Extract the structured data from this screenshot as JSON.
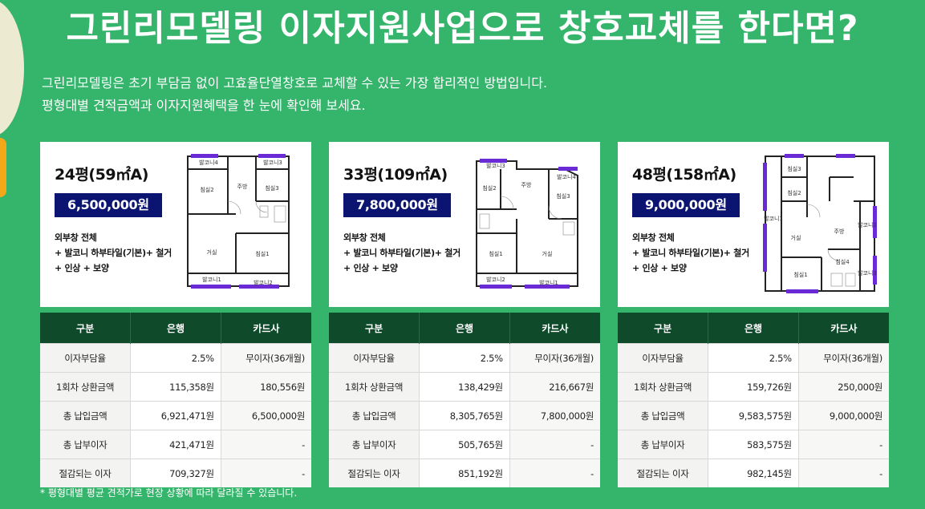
{
  "headline": "그린리모델링 이자지원사업으로 창호교체를 한다면?",
  "intro": {
    "line1": "그린리모델링은 초기 부담금 없이 고효율단열창호로 교체할 수 있는 가장 합리적인 방법입니다.",
    "line2": "평형대별 견적금액과 이자지원혜택을 한 눈에 확인해 보세요."
  },
  "table_headers": [
    "구분",
    "은행",
    "카드사"
  ],
  "row_labels": [
    "이자부담율",
    "1회차 상환금액",
    "총 납입금액",
    "총 납부이자",
    "절감되는 이자"
  ],
  "includes": [
    "외부창 전체",
    "+ 발코니 하부타일(기본)+ 철거",
    "+ 인상 + 보양"
  ],
  "plans": [
    {
      "size": "24평(59㎡A)",
      "price": "6,500,000원",
      "rooms": {
        "b1": "발코니4",
        "b2": "발코니3",
        "r1": "침실2",
        "r2": "주방",
        "r3": "침실3",
        "r4": "거실",
        "r5": "침실1",
        "b3": "발코니1",
        "b4": "발코니2"
      },
      "bank": [
        "2.5%",
        "115,358원",
        "6,921,471원",
        "421,471원",
        "709,327원"
      ],
      "card": [
        "무이자(36개월)",
        "180,556원",
        "6,500,000원",
        "-",
        "-"
      ]
    },
    {
      "size": "33평(109㎡A)",
      "price": "7,800,000원",
      "rooms": {
        "b1": "발코니3",
        "b2": "발코니4",
        "r1": "침실2",
        "r2": "주방",
        "r3": "침실3",
        "r4": "침실1",
        "r5": "거실",
        "b3": "발코니2",
        "b4": "발코니1"
      },
      "bank": [
        "2.5%",
        "138,429원",
        "8,305,765원",
        "505,765원",
        "851,192원"
      ],
      "card": [
        "무이자(36개월)",
        "216,667원",
        "7,800,000원",
        "-",
        "-"
      ]
    },
    {
      "size": "48평(158㎡A)",
      "price": "9,000,000원",
      "rooms": {
        "r1": "침실3",
        "r2": "침실2",
        "b1": "발코니1",
        "r3": "거실",
        "r4": "주방",
        "b2": "발코니2",
        "r5": "침실4",
        "r6": "침실1",
        "b3": "발코니3"
      },
      "bank": [
        "2.5%",
        "159,726원",
        "9,583,575원",
        "583,575원",
        "982,145원"
      ],
      "card": [
        "무이자(36개월)",
        "250,000원",
        "9,000,000원",
        "-",
        "-"
      ]
    }
  ],
  "footnote": "* 평형대별 평균 견적가로 현장 상황에 따라 달라질 수 있습니다.",
  "colors": {
    "background": "#35b46c",
    "price_badge": "#0b1571",
    "table_header": "#0f4a2a",
    "window_mark": "#6a2bd6"
  }
}
